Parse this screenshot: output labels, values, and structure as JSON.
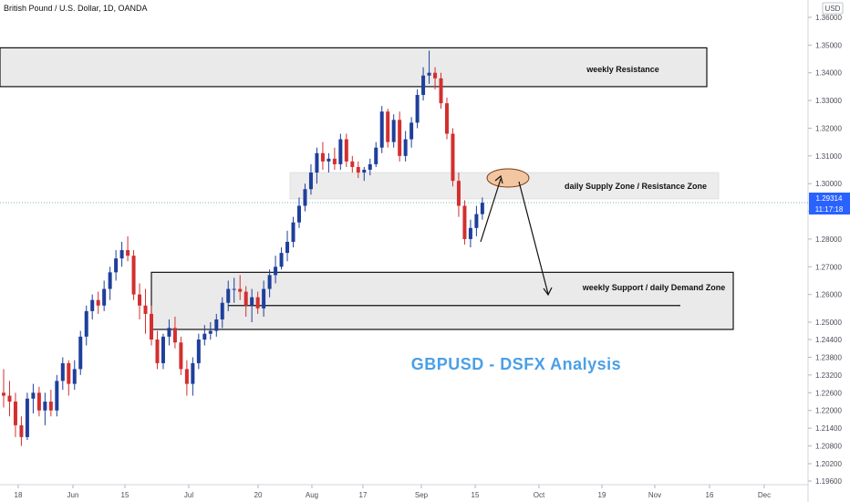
{
  "header": {
    "symbol": "British Pound / U.S. Dollar, 1D, OANDA"
  },
  "price_axis": {
    "currency": "USD"
  },
  "last_price": {
    "value": "1.29314",
    "countdown": "11:17:18",
    "color": "#2962ff"
  },
  "watermark": {
    "text": "GBPUSD - DSFX Analysis",
    "color": "#4a9fe8"
  },
  "zones": {
    "weekly_resistance": {
      "label": "weekly Resistance"
    },
    "daily_supply": {
      "label": "daily Supply Zone / Resistance Zone"
    },
    "weekly_support": {
      "label": "weekly Support / daily Demand Zone"
    }
  },
  "colors": {
    "up": "#1e3f9b",
    "down": "#d32f2f",
    "up_faded": "#8fa3d1",
    "down_faded": "#e0a3a0",
    "zone_fill": "#e6e6e6",
    "ellipse": "#f2c6a0"
  },
  "chart_data": {
    "type": "candlestick",
    "title": "British Pound / U.S. Dollar, 1D, OANDA",
    "x_tick_labels": [
      "18",
      "Jun",
      "15",
      "Jul",
      "20",
      "Aug",
      "17",
      "Sep",
      "15",
      "Oct",
      "19",
      "Nov",
      "16",
      "Dec"
    ],
    "y_tick_labels": [
      "1.36000",
      "1.35000",
      "1.34000",
      "1.33000",
      "1.32000",
      "1.31000",
      "1.30000",
      "1.29000",
      "1.28000",
      "1.27000",
      "1.26000",
      "1.25000",
      "1.24400",
      "1.23800",
      "1.23200",
      "1.22600",
      "1.22000",
      "1.21400",
      "1.20800",
      "1.20200",
      "1.19600"
    ],
    "ylim": [
      1.195,
      1.364
    ],
    "candles": [
      {
        "o": 1.226,
        "h": 1.234,
        "l": 1.221,
        "c": 1.225
      },
      {
        "o": 1.225,
        "h": 1.23,
        "l": 1.218,
        "c": 1.223
      },
      {
        "o": 1.223,
        "h": 1.226,
        "l": 1.211,
        "c": 1.215
      },
      {
        "o": 1.215,
        "h": 1.218,
        "l": 1.208,
        "c": 1.211
      },
      {
        "o": 1.211,
        "h": 1.226,
        "l": 1.21,
        "c": 1.224
      },
      {
        "o": 1.224,
        "h": 1.229,
        "l": 1.219,
        "c": 1.226
      },
      {
        "o": 1.226,
        "h": 1.228,
        "l": 1.218,
        "c": 1.22
      },
      {
        "o": 1.22,
        "h": 1.226,
        "l": 1.215,
        "c": 1.223
      },
      {
        "o": 1.223,
        "h": 1.227,
        "l": 1.218,
        "c": 1.22
      },
      {
        "o": 1.22,
        "h": 1.232,
        "l": 1.218,
        "c": 1.23
      },
      {
        "o": 1.23,
        "h": 1.238,
        "l": 1.227,
        "c": 1.236
      },
      {
        "o": 1.236,
        "h": 1.237,
        "l": 1.225,
        "c": 1.229
      },
      {
        "o": 1.229,
        "h": 1.237,
        "l": 1.227,
        "c": 1.234
      },
      {
        "o": 1.234,
        "h": 1.247,
        "l": 1.232,
        "c": 1.245
      },
      {
        "o": 1.245,
        "h": 1.256,
        "l": 1.242,
        "c": 1.254
      },
      {
        "o": 1.254,
        "h": 1.26,
        "l": 1.251,
        "c": 1.258
      },
      {
        "o": 1.258,
        "h": 1.261,
        "l": 1.253,
        "c": 1.256
      },
      {
        "o": 1.256,
        "h": 1.265,
        "l": 1.254,
        "c": 1.262
      },
      {
        "o": 1.262,
        "h": 1.27,
        "l": 1.258,
        "c": 1.268
      },
      {
        "o": 1.268,
        "h": 1.276,
        "l": 1.265,
        "c": 1.273
      },
      {
        "o": 1.273,
        "h": 1.279,
        "l": 1.27,
        "c": 1.276
      },
      {
        "o": 1.276,
        "h": 1.281,
        "l": 1.272,
        "c": 1.274
      },
      {
        "o": 1.274,
        "h": 1.276,
        "l": 1.258,
        "c": 1.26
      },
      {
        "o": 1.26,
        "h": 1.264,
        "l": 1.251,
        "c": 1.256
      },
      {
        "o": 1.256,
        "h": 1.262,
        "l": 1.246,
        "c": 1.253
      },
      {
        "o": 1.253,
        "h": 1.256,
        "l": 1.242,
        "c": 1.244
      },
      {
        "o": 1.244,
        "h": 1.247,
        "l": 1.234,
        "c": 1.236
      },
      {
        "o": 1.236,
        "h": 1.246,
        "l": 1.234,
        "c": 1.245
      },
      {
        "o": 1.245,
        "h": 1.251,
        "l": 1.242,
        "c": 1.248
      },
      {
        "o": 1.248,
        "h": 1.252,
        "l": 1.241,
        "c": 1.243
      },
      {
        "o": 1.243,
        "h": 1.245,
        "l": 1.232,
        "c": 1.234
      },
      {
        "o": 1.234,
        "h": 1.237,
        "l": 1.225,
        "c": 1.229
      },
      {
        "o": 1.229,
        "h": 1.238,
        "l": 1.225,
        "c": 1.236
      },
      {
        "o": 1.236,
        "h": 1.246,
        "l": 1.234,
        "c": 1.244
      },
      {
        "o": 1.244,
        "h": 1.249,
        "l": 1.242,
        "c": 1.246
      },
      {
        "o": 1.246,
        "h": 1.25,
        "l": 1.244,
        "c": 1.247
      },
      {
        "o": 1.247,
        "h": 1.253,
        "l": 1.245,
        "c": 1.251
      },
      {
        "o": 1.251,
        "h": 1.259,
        "l": 1.248,
        "c": 1.257
      },
      {
        "o": 1.257,
        "h": 1.265,
        "l": 1.254,
        "c": 1.262
      },
      {
        "o": 1.262,
        "h": 1.266,
        "l": 1.257,
        "c": 1.262
      },
      {
        "o": 1.262,
        "h": 1.267,
        "l": 1.258,
        "c": 1.261
      },
      {
        "o": 1.261,
        "h": 1.263,
        "l": 1.252,
        "c": 1.256
      },
      {
        "o": 1.256,
        "h": 1.262,
        "l": 1.25,
        "c": 1.259
      },
      {
        "o": 1.259,
        "h": 1.261,
        "l": 1.253,
        "c": 1.255
      },
      {
        "o": 1.255,
        "h": 1.265,
        "l": 1.252,
        "c": 1.262
      },
      {
        "o": 1.262,
        "h": 1.269,
        "l": 1.259,
        "c": 1.267
      },
      {
        "o": 1.267,
        "h": 1.274,
        "l": 1.264,
        "c": 1.27
      },
      {
        "o": 1.27,
        "h": 1.277,
        "l": 1.269,
        "c": 1.275
      },
      {
        "o": 1.275,
        "h": 1.283,
        "l": 1.272,
        "c": 1.279
      },
      {
        "o": 1.279,
        "h": 1.288,
        "l": 1.277,
        "c": 1.286
      },
      {
        "o": 1.286,
        "h": 1.295,
        "l": 1.284,
        "c": 1.292
      },
      {
        "o": 1.292,
        "h": 1.3,
        "l": 1.29,
        "c": 1.298
      },
      {
        "o": 1.298,
        "h": 1.307,
        "l": 1.296,
        "c": 1.304
      },
      {
        "o": 1.304,
        "h": 1.313,
        "l": 1.3,
        "c": 1.311
      },
      {
        "o": 1.311,
        "h": 1.315,
        "l": 1.305,
        "c": 1.308
      },
      {
        "o": 1.308,
        "h": 1.311,
        "l": 1.304,
        "c": 1.309
      },
      {
        "o": 1.309,
        "h": 1.313,
        "l": 1.305,
        "c": 1.307
      },
      {
        "o": 1.307,
        "h": 1.318,
        "l": 1.305,
        "c": 1.316
      },
      {
        "o": 1.316,
        "h": 1.318,
        "l": 1.306,
        "c": 1.308
      },
      {
        "o": 1.308,
        "h": 1.31,
        "l": 1.304,
        "c": 1.306
      },
      {
        "o": 1.306,
        "h": 1.308,
        "l": 1.302,
        "c": 1.304
      },
      {
        "o": 1.304,
        "h": 1.306,
        "l": 1.301,
        "c": 1.305
      },
      {
        "o": 1.305,
        "h": 1.309,
        "l": 1.303,
        "c": 1.307
      },
      {
        "o": 1.307,
        "h": 1.315,
        "l": 1.306,
        "c": 1.313
      },
      {
        "o": 1.313,
        "h": 1.328,
        "l": 1.311,
        "c": 1.326
      },
      {
        "o": 1.326,
        "h": 1.327,
        "l": 1.313,
        "c": 1.315
      },
      {
        "o": 1.315,
        "h": 1.325,
        "l": 1.313,
        "c": 1.323
      },
      {
        "o": 1.323,
        "h": 1.326,
        "l": 1.308,
        "c": 1.31
      },
      {
        "o": 1.31,
        "h": 1.319,
        "l": 1.308,
        "c": 1.316
      },
      {
        "o": 1.316,
        "h": 1.324,
        "l": 1.313,
        "c": 1.322
      },
      {
        "o": 1.322,
        "h": 1.334,
        "l": 1.32,
        "c": 1.332
      },
      {
        "o": 1.332,
        "h": 1.342,
        "l": 1.33,
        "c": 1.339
      },
      {
        "o": 1.339,
        "h": 1.348,
        "l": 1.336,
        "c": 1.34
      },
      {
        "o": 1.34,
        "h": 1.342,
        "l": 1.334,
        "c": 1.338
      },
      {
        "o": 1.338,
        "h": 1.34,
        "l": 1.327,
        "c": 1.329
      },
      {
        "o": 1.329,
        "h": 1.331,
        "l": 1.316,
        "c": 1.318
      },
      {
        "o": 1.318,
        "h": 1.32,
        "l": 1.299,
        "c": 1.301
      },
      {
        "o": 1.301,
        "h": 1.304,
        "l": 1.288,
        "c": 1.292
      },
      {
        "o": 1.292,
        "h": 1.294,
        "l": 1.278,
        "c": 1.28
      },
      {
        "o": 1.28,
        "h": 1.287,
        "l": 1.277,
        "c": 1.284
      },
      {
        "o": 1.284,
        "h": 1.292,
        "l": 1.281,
        "c": 1.289
      },
      {
        "o": 1.289,
        "h": 1.295,
        "l": 1.287,
        "c": 1.2931
      }
    ],
    "zones": [
      {
        "label": "weekly Resistance",
        "from": 1.335,
        "to": 1.349
      },
      {
        "label": "daily Supply Zone / Resistance Zone",
        "from": 1.2945,
        "to": 1.304
      },
      {
        "label": "weekly Support / daily Demand Zone",
        "from": 1.2475,
        "to": 1.268
      }
    ],
    "support_line": 1.256,
    "last_price": 1.29314,
    "grid": false
  }
}
